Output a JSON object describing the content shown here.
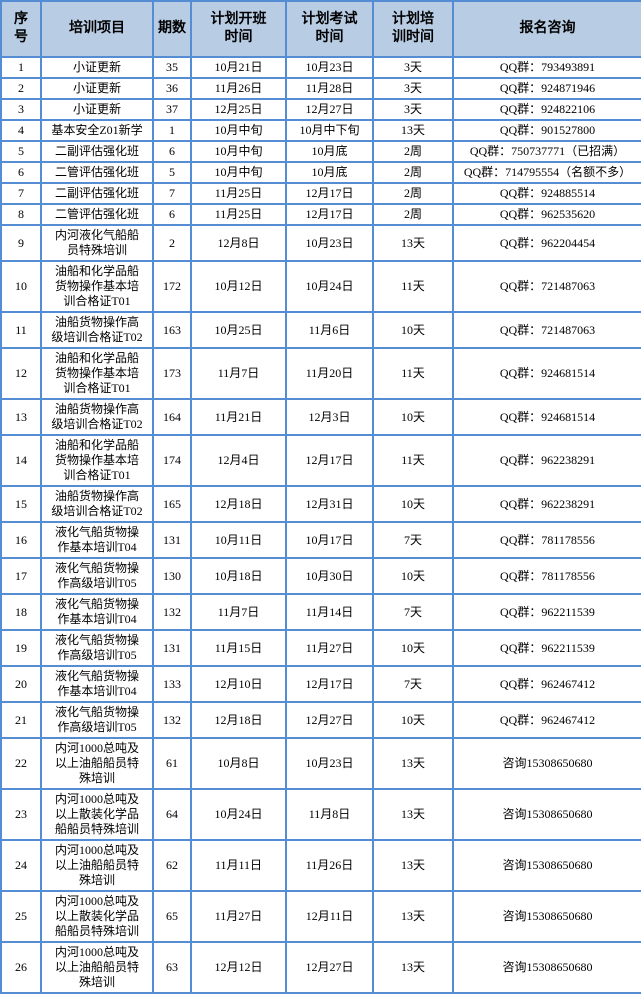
{
  "colors": {
    "border": "#548dd4",
    "header_bg": "#b8cce4",
    "row_bg": "#ffffff",
    "text": "#000000"
  },
  "table": {
    "columns": [
      {
        "key": "seq",
        "label": "序\n号"
      },
      {
        "key": "project",
        "label": "培训项目"
      },
      {
        "key": "sessions",
        "label": "期数"
      },
      {
        "key": "start",
        "label": "计划开班\n时间"
      },
      {
        "key": "exam",
        "label": "计划考试\n时间"
      },
      {
        "key": "duration",
        "label": "计划培\n训时间"
      },
      {
        "key": "contact",
        "label": "报名咨询"
      }
    ],
    "rows": [
      [
        "1",
        "小证更新",
        "35",
        "10月21日",
        "10月23日",
        "3天",
        "QQ群：793493891"
      ],
      [
        "2",
        "小证更新",
        "36",
        "11月26日",
        "11月28日",
        "3天",
        "QQ群：924871946"
      ],
      [
        "3",
        "小证更新",
        "37",
        "12月25日",
        "12月27日",
        "3天",
        "QQ群：924822106"
      ],
      [
        "4",
        "基本安全Z01新学",
        "1",
        "10月中旬",
        "10月中下旬",
        "13天",
        "QQ群：901527800"
      ],
      [
        "5",
        "二副评估强化班",
        "6",
        "10月中旬",
        "10月底",
        "2周",
        "QQ群：750737771（已招满）"
      ],
      [
        "6",
        "二管评估强化班",
        "5",
        "10月中旬",
        "10月底",
        "2周",
        "QQ群：714795554（名额不多）"
      ],
      [
        "7",
        "二副评估强化班",
        "7",
        "11月25日",
        "12月17日",
        "2周",
        "QQ群：924885514"
      ],
      [
        "8",
        "二管评估强化班",
        "6",
        "11月25日",
        "12月17日",
        "2周",
        "QQ群：962535620"
      ],
      [
        "9",
        "内河液化气船船\n员特殊培训",
        "2",
        "12月8日",
        "10月23日",
        "13天",
        "QQ群：962204454"
      ],
      [
        "10",
        "油船和化学品船\n货物操作基本培\n训合格证T01",
        "172",
        "10月12日",
        "10月24日",
        "11天",
        "QQ群：721487063"
      ],
      [
        "11",
        "油船货物操作高\n级培训合格证T02",
        "163",
        "10月25日",
        "11月6日",
        "10天",
        "QQ群：721487063"
      ],
      [
        "12",
        "油船和化学品船\n货物操作基本培\n训合格证T01",
        "173",
        "11月7日",
        "11月20日",
        "11天",
        "QQ群：924681514"
      ],
      [
        "13",
        "油船货物操作高\n级培训合格证T02",
        "164",
        "11月21日",
        "12月3日",
        "10天",
        "QQ群：924681514"
      ],
      [
        "14",
        "油船和化学品船\n货物操作基本培\n训合格证T01",
        "174",
        "12月4日",
        "12月17日",
        "11天",
        "QQ群：962238291"
      ],
      [
        "15",
        "油船货物操作高\n级培训合格证T02",
        "165",
        "12月18日",
        "12月31日",
        "10天",
        "QQ群：962238291"
      ],
      [
        "16",
        "液化气船货物操\n作基本培训T04",
        "131",
        "10月11日",
        "10月17日",
        "7天",
        "QQ群：781178556"
      ],
      [
        "17",
        "液化气船货物操\n作高级培训T05",
        "130",
        "10月18日",
        "10月30日",
        "10天",
        "QQ群：781178556"
      ],
      [
        "18",
        "液化气船货物操\n作基本培训T04",
        "132",
        "11月7日",
        "11月14日",
        "7天",
        "QQ群：962211539"
      ],
      [
        "19",
        "液化气船货物操\n作高级培训T05",
        "131",
        "11月15日",
        "11月27日",
        "10天",
        "QQ群：962211539"
      ],
      [
        "20",
        "液化气船货物操\n作基本培训T04",
        "133",
        "12月10日",
        "12月17日",
        "7天",
        "QQ群：962467412"
      ],
      [
        "21",
        "液化气船货物操\n作高级培训T05",
        "132",
        "12月18日",
        "12月27日",
        "10天",
        "QQ群：962467412"
      ],
      [
        "22",
        "内河1000总吨及\n以上油船船员特\n殊培训",
        "61",
        "10月8日",
        "10月23日",
        "13天",
        "咨询15308650680"
      ],
      [
        "23",
        "内河1000总吨及\n以上散装化学品\n船船员特殊培训",
        "64",
        "10月24日",
        "11月8日",
        "13天",
        "咨询15308650680"
      ],
      [
        "24",
        "内河1000总吨及\n以上油船船员特\n殊培训",
        "62",
        "11月11日",
        "11月26日",
        "13天",
        "咨询15308650680"
      ],
      [
        "25",
        "内河1000总吨及\n以上散装化学品\n船船员特殊培训",
        "65",
        "11月27日",
        "12月11日",
        "13天",
        "咨询15308650680"
      ],
      [
        "26",
        "内河1000总吨及\n以上油船船员特\n殊培训",
        "63",
        "12月12日",
        "12月27日",
        "13天",
        "咨询15308650680"
      ]
    ]
  }
}
